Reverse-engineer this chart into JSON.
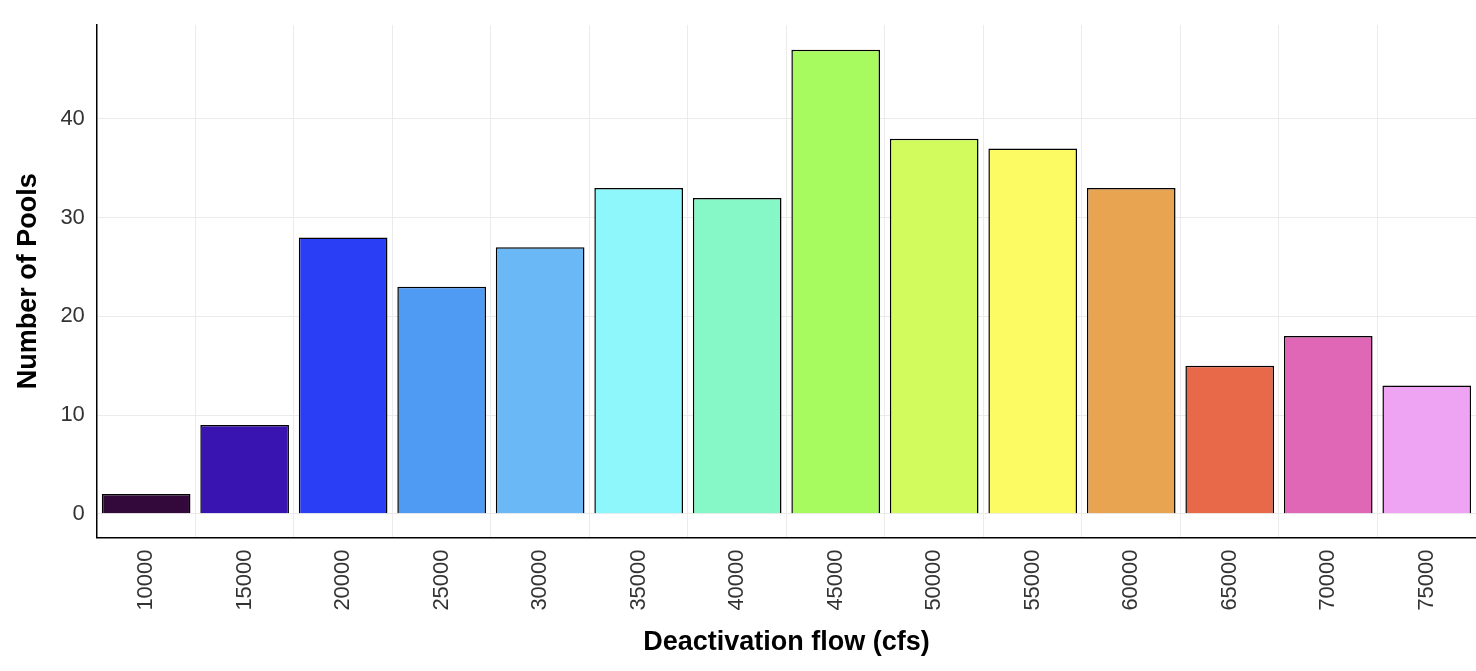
{
  "chart_data": {
    "type": "bar",
    "xlabel": "Deactivation flow (cfs)",
    "ylabel": "Number of Pools",
    "categories": [
      "10000",
      "15000",
      "20000",
      "25000",
      "30000",
      "35000",
      "40000",
      "45000",
      "50000",
      "55000",
      "60000",
      "65000",
      "70000",
      "75000"
    ],
    "values": [
      2,
      9,
      28,
      23,
      27,
      33,
      32,
      47,
      38,
      37,
      33,
      15,
      18,
      13
    ],
    "colors": [
      "#33083a",
      "#3a14b0",
      "#2a3ef5",
      "#4f9af2",
      "#6ab8f5",
      "#8ef7fb",
      "#86f7c6",
      "#a8fb5e",
      "#d2fb5e",
      "#fdfb63",
      "#e9a452",
      "#e8694a",
      "#e066b6",
      "#eea3f3"
    ],
    "ylim": [
      -2.4,
      49.5
    ],
    "yticks": [
      0,
      10,
      20,
      30,
      40
    ],
    "grid": true,
    "legend": false
  }
}
